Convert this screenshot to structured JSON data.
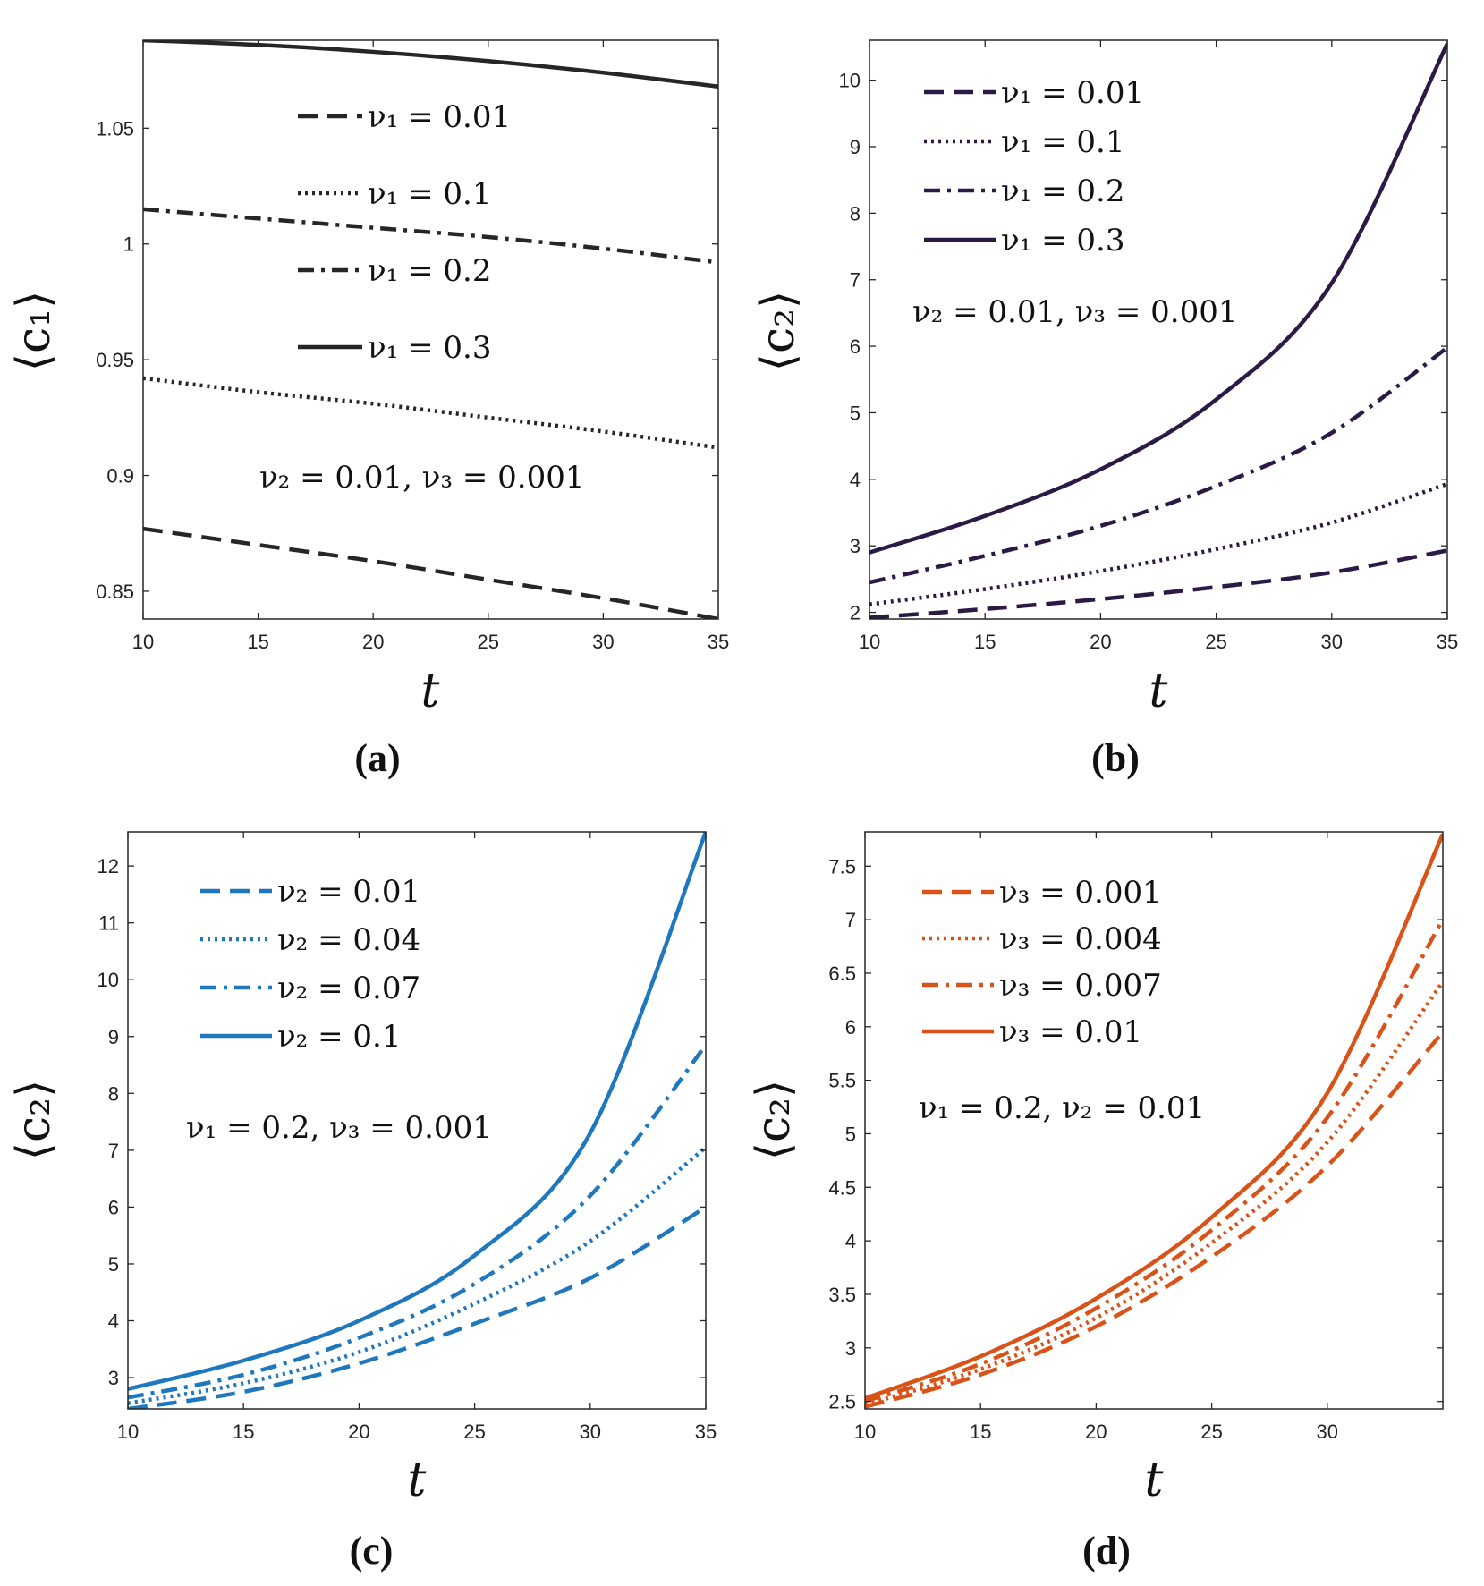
{
  "chart_data": [
    {
      "type": "line",
      "panel_label": "(a)",
      "xlabel": "t",
      "ylabel": "⟨c₁⟩",
      "xlim": [
        10,
        35
      ],
      "ylim": [
        0.838,
        1.088
      ],
      "xticks": [
        10,
        15,
        20,
        25,
        30,
        35
      ],
      "xtick_labels": [
        "10",
        "15",
        "20",
        "25",
        "30",
        "35"
      ],
      "yticks": [
        0.85,
        0.9,
        0.95,
        1.0,
        1.05
      ],
      "ytick_labels": [
        "0.85",
        "0.9",
        "0.95",
        "1",
        "1.05"
      ],
      "color": "#262626",
      "legend": "inside, spaced vertically",
      "annotation": "ν₂ = 0.01, ν₃ = 0.001",
      "x": [
        10,
        15,
        20,
        25,
        30,
        35
      ],
      "series": [
        {
          "name": "ν₁ = 0.01",
          "style": "dashed",
          "values": [
            0.877,
            0.87,
            0.863,
            0.855,
            0.847,
            0.838
          ]
        },
        {
          "name": "ν₁ = 0.1",
          "style": "dotted",
          "values": [
            0.942,
            0.936,
            0.931,
            0.925,
            0.919,
            0.912
          ]
        },
        {
          "name": "ν₁ = 0.2",
          "style": "dashdot",
          "values": [
            1.015,
            1.011,
            1.007,
            1.003,
            0.998,
            0.992
          ]
        },
        {
          "name": "ν₁ = 0.3",
          "style": "solid",
          "values": [
            1.088,
            1.086,
            1.083,
            1.079,
            1.074,
            1.068
          ]
        }
      ]
    },
    {
      "type": "line",
      "panel_label": "(b)",
      "xlabel": "t",
      "ylabel": "⟨c₂⟩",
      "xlim": [
        10,
        35
      ],
      "ylim": [
        1.9,
        10.6
      ],
      "xticks": [
        10,
        15,
        20,
        25,
        30,
        35
      ],
      "xtick_labels": [
        "10",
        "15",
        "20",
        "25",
        "30",
        "35"
      ],
      "yticks": [
        2,
        3,
        4,
        5,
        6,
        7,
        8,
        9,
        10
      ],
      "ytick_labels": [
        "2",
        "3",
        "4",
        "5",
        "6",
        "7",
        "8",
        "9",
        "10"
      ],
      "color": "#2b1a45",
      "legend": "top-left",
      "annotation": "ν₂ = 0.01, ν₃ = 0.001",
      "x": [
        10,
        15,
        20,
        25,
        30,
        35
      ],
      "series": [
        {
          "name": "ν₁ = 0.01",
          "style": "dashed",
          "values": [
            1.92,
            2.05,
            2.2,
            2.38,
            2.6,
            2.93
          ]
        },
        {
          "name": "ν₁ = 0.1",
          "style": "dotted",
          "values": [
            2.12,
            2.35,
            2.62,
            2.95,
            3.35,
            3.93
          ]
        },
        {
          "name": "ν₁ = 0.2",
          "style": "dashdot",
          "values": [
            2.45,
            2.85,
            3.3,
            3.9,
            4.7,
            5.98
          ]
        },
        {
          "name": "ν₁ = 0.3",
          "style": "solid",
          "values": [
            2.9,
            3.45,
            4.15,
            5.2,
            6.95,
            10.55
          ]
        }
      ]
    },
    {
      "type": "line",
      "panel_label": "(c)",
      "xlabel": "t",
      "ylabel": "⟨c₂⟩",
      "xlim": [
        10,
        35
      ],
      "ylim": [
        2.45,
        12.6
      ],
      "xticks": [
        10,
        15,
        20,
        25,
        30,
        35
      ],
      "xtick_labels": [
        "10",
        "15",
        "20",
        "25",
        "30",
        "35"
      ],
      "yticks": [
        3,
        4,
        5,
        6,
        7,
        8,
        9,
        10,
        11,
        12
      ],
      "ytick_labels": [
        "3",
        "4",
        "5",
        "6",
        "7",
        "8",
        "9",
        "10",
        "11",
        "12"
      ],
      "color": "#1f77bd",
      "legend": "top-left",
      "annotation": "ν₁ = 0.2, ν₃ = 0.001",
      "x": [
        10,
        15,
        20,
        25,
        30,
        35
      ],
      "series": [
        {
          "name": "ν₂ = 0.01",
          "style": "dashed",
          "values": [
            2.45,
            2.75,
            3.25,
            3.95,
            4.75,
            6.0
          ]
        },
        {
          "name": "ν₂ = 0.04",
          "style": "dotted",
          "values": [
            2.55,
            2.9,
            3.45,
            4.3,
            5.4,
            7.05
          ]
        },
        {
          "name": "ν₂ = 0.07",
          "style": "dashdot",
          "values": [
            2.65,
            3.05,
            3.7,
            4.65,
            6.2,
            8.85
          ]
        },
        {
          "name": "ν₂ = 0.1",
          "style": "solid",
          "values": [
            2.8,
            3.3,
            4.0,
            5.15,
            7.3,
            12.6
          ]
        }
      ]
    },
    {
      "type": "line",
      "panel_label": "(d)",
      "xlabel": "t",
      "ylabel": "⟨c₂⟩",
      "xlim": [
        10,
        35
      ],
      "ylim": [
        2.43,
        7.82
      ],
      "xticks": [
        10,
        15,
        20,
        25,
        30
      ],
      "xtick_labels": [
        "10",
        "15",
        "20",
        "25",
        "30"
      ],
      "yticks": [
        2.5,
        3,
        3.5,
        4,
        4.5,
        5,
        5.5,
        6,
        6.5,
        7,
        7.5
      ],
      "ytick_labels": [
        "2.5",
        "3",
        "3.5",
        "4",
        "4.5",
        "5",
        "5.5",
        "6",
        "6.5",
        "7",
        "7.5"
      ],
      "color": "#d95319",
      "legend": "top-left",
      "annotation": "ν₁ = 0.2, ν₂ = 0.01",
      "x": [
        10,
        15,
        20,
        25,
        30,
        35
      ],
      "series": [
        {
          "name": "ν₃ = 0.001",
          "style": "dashed",
          "values": [
            2.45,
            2.75,
            3.2,
            3.85,
            4.7,
            5.95
          ]
        },
        {
          "name": "ν₃ = 0.004",
          "style": "dotted",
          "values": [
            2.47,
            2.8,
            3.28,
            3.98,
            4.92,
            6.42
          ]
        },
        {
          "name": "ν₃ = 0.007",
          "style": "dashdot",
          "values": [
            2.5,
            2.85,
            3.37,
            4.1,
            5.15,
            7.0
          ]
        },
        {
          "name": "ν₃ = 0.01",
          "style": "solid",
          "values": [
            2.53,
            2.92,
            3.46,
            4.22,
            5.38,
            7.8
          ]
        }
      ]
    }
  ]
}
